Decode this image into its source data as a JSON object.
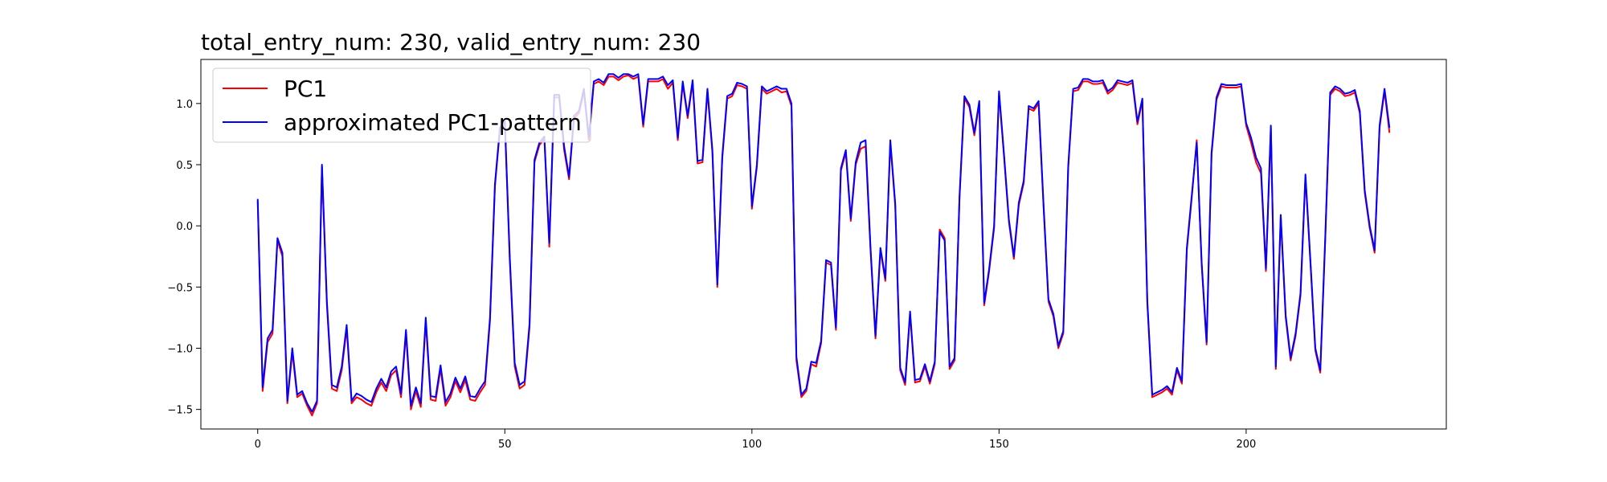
{
  "chart_data": {
    "type": "line",
    "title": "total_entry_num: 230, valid_entry_num: 230",
    "xlabel": "",
    "ylabel": "",
    "xlim": [
      -11.5,
      240.5
    ],
    "ylim": [
      -1.66,
      1.36
    ],
    "xticks": [
      0,
      50,
      100,
      150,
      200
    ],
    "xtick_labels": [
      "0",
      "50",
      "100",
      "150",
      "200"
    ],
    "yticks": [
      -1.5,
      -1.0,
      -0.5,
      0.0,
      0.5,
      1.0
    ],
    "ytick_labels": [
      "−1.5",
      "−1.0",
      "−0.5",
      "0.0",
      "0.5",
      "1.0"
    ],
    "grid": false,
    "legend_position": "upper-left",
    "series": [
      {
        "name": "PC1",
        "color": "#ff0000",
        "values": [
          0.2,
          -1.35,
          -0.95,
          -0.88,
          -0.12,
          -0.25,
          -1.45,
          -1.03,
          -1.4,
          -1.37,
          -1.47,
          -1.55,
          -1.45,
          0.48,
          -0.65,
          -1.33,
          -1.35,
          -1.18,
          -0.84,
          -1.45,
          -1.4,
          -1.42,
          -1.45,
          -1.47,
          -1.36,
          -1.28,
          -1.35,
          -1.22,
          -1.18,
          -1.4,
          -0.88,
          -1.5,
          -1.35,
          -1.48,
          -0.78,
          -1.42,
          -1.43,
          -1.17,
          -1.47,
          -1.4,
          -1.27,
          -1.36,
          -1.26,
          -1.42,
          -1.43,
          -1.36,
          -1.3,
          -0.78,
          0.32,
          0.78,
          0.85,
          -0.28,
          -1.15,
          -1.33,
          -1.3,
          -0.83,
          0.52,
          0.66,
          0.71,
          -0.17,
          1.05,
          1.05,
          0.62,
          0.38,
          0.88,
          0.92,
          1.1,
          0.7,
          1.16,
          1.18,
          1.15,
          1.22,
          1.22,
          1.19,
          1.22,
          1.23,
          1.2,
          1.22,
          0.81,
          1.18,
          1.18,
          1.18,
          1.2,
          1.12,
          1.17,
          0.7,
          1.16,
          0.88,
          1.17,
          0.51,
          0.52,
          1.1,
          0.6,
          -0.5,
          0.55,
          1.04,
          1.06,
          1.15,
          1.14,
          1.12,
          0.14,
          0.48,
          1.12,
          1.08,
          1.1,
          1.12,
          1.09,
          1.1,
          0.98,
          -1.1,
          -1.4,
          -1.35,
          -1.13,
          -1.15,
          -0.96,
          -0.3,
          -0.32,
          -0.85,
          0.45,
          0.6,
          0.04,
          0.5,
          0.63,
          0.65,
          -0.2,
          -0.92,
          -0.2,
          -0.45,
          0.68,
          0.16,
          -1.18,
          -1.3,
          -0.72,
          -1.28,
          -1.27,
          -1.15,
          -1.29,
          -1.13,
          -0.03,
          -0.1,
          -1.17,
          -1.1,
          0.22,
          1.04,
          0.97,
          0.74,
          1.0,
          -0.65,
          -0.37,
          -0.02,
          1.08,
          0.57,
          0.03,
          -0.27,
          0.17,
          0.35,
          0.96,
          0.94,
          1.0,
          0.16,
          -0.62,
          -0.74,
          -1.0,
          -0.88,
          0.47,
          1.1,
          1.11,
          1.18,
          1.18,
          1.16,
          1.16,
          1.17,
          1.08,
          1.11,
          1.17,
          1.16,
          1.15,
          1.17,
          0.83,
          1.02,
          -0.63,
          -1.4,
          -1.38,
          -1.36,
          -1.33,
          -1.38,
          -1.18,
          -1.29,
          -0.2,
          0.23,
          0.7,
          -0.32,
          -0.97,
          0.58,
          1.03,
          1.14,
          1.13,
          1.13,
          1.13,
          1.14,
          0.82,
          0.68,
          0.52,
          0.43,
          -0.37,
          0.8,
          -1.17,
          0.07,
          -0.75,
          -1.1,
          -0.9,
          -0.57,
          0.4,
          -0.3,
          -1.02,
          -1.2,
          -0.12,
          1.07,
          1.12,
          1.1,
          1.06,
          1.07,
          1.09,
          0.92,
          0.27,
          -0.02,
          -0.22,
          0.8,
          1.1,
          0.76
        ]
      },
      {
        "name": "approximated PC1-pattern",
        "color": "#0000ff",
        "values": [
          0.22,
          -1.32,
          -0.92,
          -0.85,
          -0.1,
          -0.22,
          -1.43,
          -1.0,
          -1.38,
          -1.35,
          -1.45,
          -1.52,
          -1.43,
          0.5,
          -0.62,
          -1.3,
          -1.32,
          -1.15,
          -0.81,
          -1.43,
          -1.37,
          -1.39,
          -1.42,
          -1.44,
          -1.33,
          -1.25,
          -1.32,
          -1.19,
          -1.15,
          -1.37,
          -0.85,
          -1.47,
          -1.32,
          -1.45,
          -0.75,
          -1.39,
          -1.4,
          -1.14,
          -1.44,
          -1.37,
          -1.24,
          -1.33,
          -1.23,
          -1.39,
          -1.4,
          -1.33,
          -1.27,
          -0.75,
          0.34,
          0.8,
          0.87,
          -0.25,
          -1.12,
          -1.3,
          -1.27,
          -0.8,
          0.54,
          0.68,
          0.73,
          -0.14,
          1.07,
          1.07,
          0.65,
          0.4,
          0.9,
          0.94,
          1.12,
          0.72,
          1.18,
          1.2,
          1.17,
          1.24,
          1.24,
          1.21,
          1.24,
          1.24,
          1.22,
          1.24,
          0.83,
          1.2,
          1.2,
          1.2,
          1.22,
          1.15,
          1.19,
          0.72,
          1.18,
          0.9,
          1.19,
          0.53,
          0.54,
          1.12,
          0.62,
          -0.48,
          0.57,
          1.06,
          1.08,
          1.17,
          1.16,
          1.14,
          0.16,
          0.5,
          1.14,
          1.1,
          1.12,
          1.14,
          1.12,
          1.12,
          1.0,
          -1.07,
          -1.38,
          -1.33,
          -1.11,
          -1.12,
          -0.94,
          -0.28,
          -0.3,
          -0.83,
          0.47,
          0.62,
          0.06,
          0.52,
          0.68,
          0.7,
          -0.18,
          -0.9,
          -0.18,
          -0.43,
          0.7,
          0.18,
          -1.16,
          -1.28,
          -0.7,
          -1.26,
          -1.25,
          -1.13,
          -1.27,
          -1.11,
          -0.05,
          -0.12,
          -1.15,
          -1.08,
          0.24,
          1.06,
          0.99,
          0.76,
          1.02,
          -0.63,
          -0.35,
          0.0,
          1.1,
          0.59,
          0.05,
          -0.25,
          0.19,
          0.37,
          0.98,
          0.96,
          1.02,
          0.18,
          -0.6,
          -0.72,
          -0.98,
          -0.86,
          0.49,
          1.12,
          1.13,
          1.2,
          1.2,
          1.18,
          1.18,
          1.19,
          1.1,
          1.13,
          1.19,
          1.18,
          1.17,
          1.19,
          0.85,
          1.04,
          -0.61,
          -1.38,
          -1.36,
          -1.34,
          -1.31,
          -1.36,
          -1.16,
          -1.27,
          -0.18,
          0.25,
          0.68,
          -0.3,
          -0.95,
          0.6,
          1.05,
          1.16,
          1.15,
          1.15,
          1.15,
          1.16,
          0.84,
          0.72,
          0.56,
          0.47,
          -0.35,
          0.82,
          -1.15,
          0.09,
          -0.73,
          -1.08,
          -0.88,
          -0.55,
          0.42,
          -0.28,
          -1.0,
          -1.18,
          -0.1,
          1.09,
          1.14,
          1.12,
          1.08,
          1.09,
          1.11,
          0.94,
          0.29,
          0.0,
          -0.2,
          0.82,
          1.12,
          0.8
        ]
      }
    ]
  }
}
